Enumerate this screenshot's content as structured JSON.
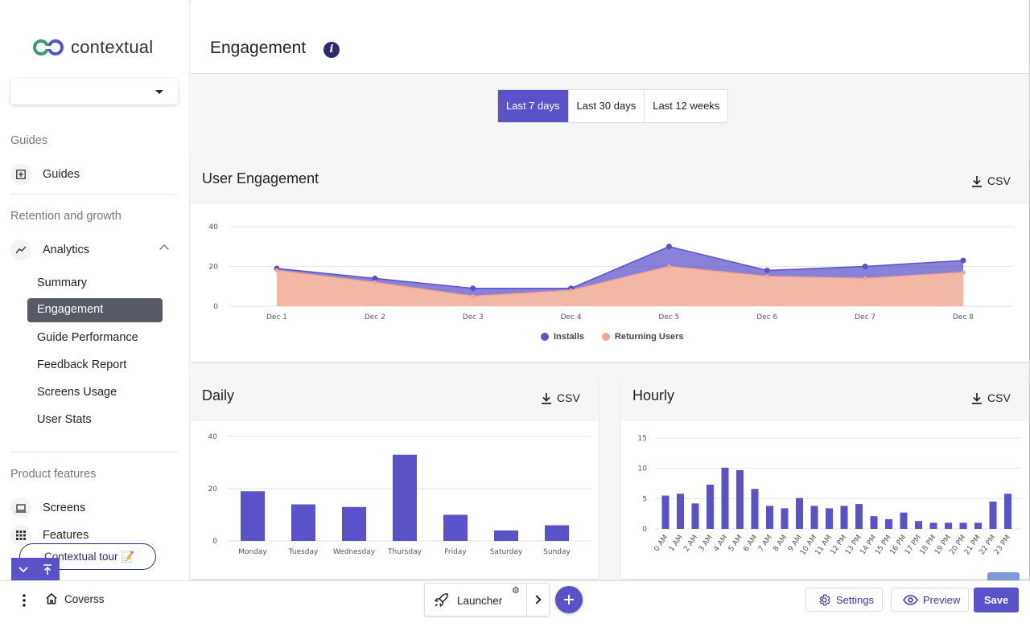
{
  "brand": {
    "name": "contextual"
  },
  "sidebar": {
    "select_value": "",
    "sections": {
      "guides": "Guides",
      "retention": "Retention and growth",
      "product": "Product features"
    },
    "guides_item": "Guides",
    "analytics_item": "Analytics",
    "analytics_sub": [
      "Summary",
      "Engagement",
      "Guide Performance",
      "Feedback Report",
      "Screens Usage",
      "User Stats"
    ],
    "screens_item": "Screens",
    "features_item": "Features",
    "tour_pill": "Contextual tour 📝"
  },
  "header": {
    "title": "Engagement"
  },
  "ranges": [
    "Last 7 days",
    "Last 30 days",
    "Last 12 weeks"
  ],
  "active_range": "Last 7 days",
  "cards": {
    "engagement": {
      "title": "User Engagement",
      "csv": "CSV"
    },
    "daily": {
      "title": "Daily",
      "csv": "CSV"
    },
    "hourly": {
      "title": "Hourly",
      "csv": "CSV"
    }
  },
  "colors": {
    "accent": "#5b51c9",
    "installs": "#5b51c9",
    "returning": "#f0a58e"
  },
  "chart_data": [
    {
      "type": "area",
      "title": "User Engagement",
      "x": [
        "Dec 1",
        "Dec 2",
        "Dec 3",
        "Dec 4",
        "Dec 5",
        "Dec 6",
        "Dec 7",
        "Dec 8"
      ],
      "ylim": [
        0,
        40
      ],
      "yticks": [
        0,
        20,
        40
      ],
      "series": [
        {
          "name": "Installs",
          "values": [
            19,
            14,
            9,
            9,
            30,
            18,
            20,
            23
          ]
        },
        {
          "name": "Returning Users",
          "values": [
            18,
            12,
            5,
            8,
            20,
            15,
            14,
            17
          ]
        }
      ],
      "legend": "bottom-center"
    },
    {
      "type": "bar",
      "title": "Daily",
      "categories": [
        "Monday",
        "Tuesday",
        "Wednesday",
        "Thursday",
        "Friday",
        "Saturday",
        "Sunday"
      ],
      "values": [
        19,
        14,
        13,
        33,
        10,
        4,
        6
      ],
      "ylim": [
        0,
        40
      ],
      "yticks": [
        0,
        20,
        40
      ]
    },
    {
      "type": "bar",
      "title": "Hourly",
      "categories": [
        "0 AM",
        "1 AM",
        "2 AM",
        "3 AM",
        "4 AM",
        "5 AM",
        "6 AM",
        "7 AM",
        "8 AM",
        "9 AM",
        "10 AM",
        "11 AM",
        "12 PM",
        "13 PM",
        "14 PM",
        "15 PM",
        "16 PM",
        "17 PM",
        "18 PM",
        "19 PM",
        "20 PM",
        "21 PM",
        "22 PM",
        "23 PM"
      ],
      "values": [
        5.5,
        5.8,
        4.2,
        7.3,
        10.1,
        9.7,
        6.6,
        3.8,
        3.4,
        5.1,
        3.8,
        3.4,
        3.8,
        4.1,
        2.1,
        1.6,
        2.7,
        1.3,
        1.0,
        1.0,
        1.0,
        1.0,
        4.5,
        5.8
      ],
      "ylim": [
        0,
        15
      ],
      "yticks": [
        0,
        5,
        10,
        15
      ]
    }
  ],
  "bottom": {
    "home_label": "Coverss",
    "launcher_label": "Launcher",
    "settings_label": "Settings",
    "preview_label": "Preview",
    "save_label": "Save"
  }
}
